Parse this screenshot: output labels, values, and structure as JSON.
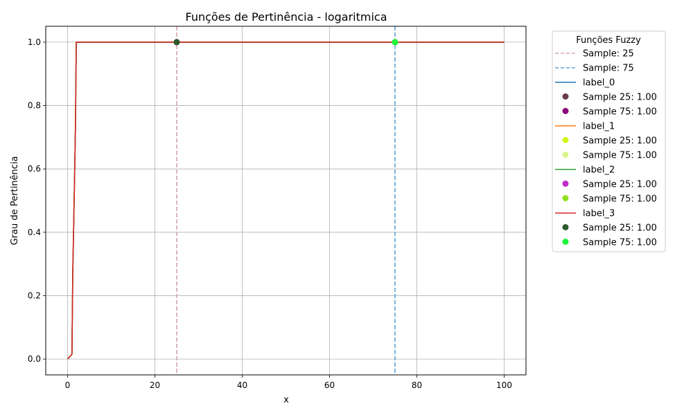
{
  "chart_data": {
    "type": "line",
    "title": "Funções de Pertinência - logaritmica",
    "xlabel": "x",
    "ylabel": "Grau de Pertinência",
    "xlim": [
      -5,
      105
    ],
    "ylim": [
      -0.05,
      1.05
    ],
    "xticks": [
      0,
      20,
      40,
      60,
      80,
      100
    ],
    "yticks": [
      0.0,
      0.2,
      0.4,
      0.6,
      0.8,
      1.0
    ],
    "grid": true,
    "legend_title": "Funções Fuzzy",
    "legend_position": "outside-right",
    "vlines": [
      {
        "name": "Sample: 25",
        "x": 25,
        "color": "#d4a3ad"
      },
      {
        "name": "Sample: 75",
        "x": 75,
        "color": "#5aa3d6"
      }
    ],
    "series": [
      {
        "name": "label_0",
        "color": "#1f77b4",
        "x": [
          0,
          1,
          1.2,
          1.4,
          1.6,
          1.8,
          2,
          100
        ],
        "y": [
          0,
          0.015,
          0.28,
          0.42,
          0.57,
          0.73,
          1.0,
          1.0
        ],
        "samples": [
          {
            "label": "Sample 25: 1.00",
            "x": 25,
            "y": 1.0,
            "color": "#6b3a4e"
          },
          {
            "label": "Sample 75: 1.00",
            "x": 75,
            "y": 1.0,
            "color": "#8b0a7a"
          }
        ]
      },
      {
        "name": "label_1",
        "color": "#ff7f0e",
        "x": [
          0,
          1,
          1.2,
          1.4,
          1.6,
          1.8,
          2,
          100
        ],
        "y": [
          0,
          0.015,
          0.28,
          0.42,
          0.57,
          0.73,
          1.0,
          1.0
        ],
        "samples": [
          {
            "label": "Sample 25: 1.00",
            "x": 25,
            "y": 1.0,
            "color": "#d2f51a"
          },
          {
            "label": "Sample 75: 1.00",
            "x": 75,
            "y": 1.0,
            "color": "#d9f78c"
          }
        ]
      },
      {
        "name": "label_2",
        "color": "#2ca02c",
        "x": [
          0,
          1,
          1.2,
          1.4,
          1.6,
          1.8,
          2,
          100
        ],
        "y": [
          0,
          0.015,
          0.28,
          0.42,
          0.57,
          0.73,
          1.0,
          1.0
        ],
        "samples": [
          {
            "label": "Sample 25: 1.00",
            "x": 25,
            "y": 1.0,
            "color": "#c02ccb"
          },
          {
            "label": "Sample 75: 1.00",
            "x": 75,
            "y": 1.0,
            "color": "#92e01c"
          }
        ]
      },
      {
        "name": "label_3",
        "color": "#d62728",
        "x": [
          0,
          1,
          1.2,
          1.4,
          1.6,
          1.8,
          2,
          100
        ],
        "y": [
          0,
          0.015,
          0.28,
          0.42,
          0.57,
          0.73,
          1.0,
          1.0
        ],
        "samples": [
          {
            "label": "Sample 25: 1.00",
            "x": 25,
            "y": 1.0,
            "color": "#2e5a2a"
          },
          {
            "label": "Sample 75: 1.00",
            "x": 75,
            "y": 1.0,
            "color": "#1ef53a"
          }
        ]
      }
    ]
  }
}
